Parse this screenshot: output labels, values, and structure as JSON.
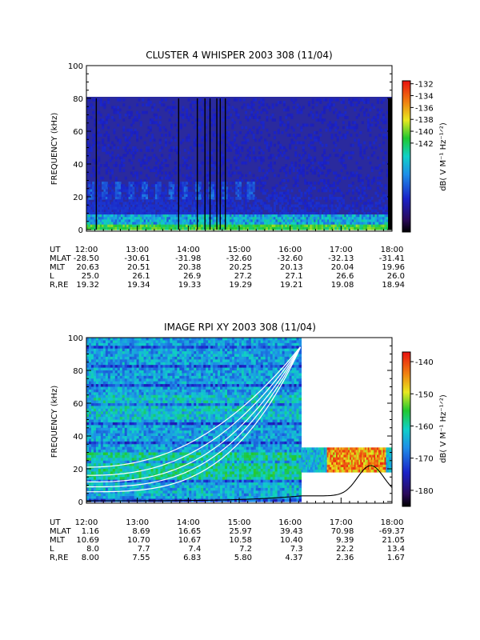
{
  "chart_data": [
    {
      "type": "heatmap",
      "title": "CLUSTER 4 WHISPER 2003 308 (11/04)",
      "ylabel": "FREQUENCY (kHz)",
      "ylim": [
        0,
        100
      ],
      "yticks": [
        0,
        20,
        40,
        60,
        80,
        100
      ],
      "x_range": [
        "12:00",
        "18:00"
      ],
      "data_frequency_max_khz": 80,
      "colorbar": {
        "label": "dB( V M⁻¹ Hz⁻¹ᐟ²)",
        "range": [
          -143.5,
          -131.5
        ],
        "ticks": [
          -132,
          -134,
          -136,
          -138,
          -140,
          -142
        ]
      },
      "vertical_gaps_ut": [
        "12:11",
        "13:48",
        "14:10",
        "14:19",
        "14:25",
        "14:33",
        "14:37",
        "14:43"
      ],
      "ephemeris": {
        "row_labels": [
          "UT",
          "MLAT",
          "MLT",
          "L",
          "R,RE"
        ],
        "UT": [
          "12:00",
          "13:00",
          "14:00",
          "15:00",
          "16:00",
          "17:00",
          "18:00"
        ],
        "MLAT": [
          "-28.50",
          "-30.61",
          "-31.98",
          "-32.60",
          "-32.60",
          "-32.13",
          "-31.41"
        ],
        "MLT": [
          "20.63",
          "20.51",
          "20.38",
          "20.25",
          "20.13",
          "20.04",
          "19.96"
        ],
        "L": [
          "25.0",
          "26.1",
          "26.9",
          "27.2",
          "27.1",
          "26.6",
          "26.0"
        ],
        "R,RE": [
          "19.32",
          "19.34",
          "19.33",
          "19.29",
          "19.21",
          "19.08",
          "18.94"
        ]
      }
    },
    {
      "type": "heatmap",
      "title": "IMAGE RPI XY 2003 308 (11/04)",
      "ylabel": "FREQUENCY (kHz)",
      "ylim": [
        0,
        100
      ],
      "yticks": [
        0,
        20,
        40,
        60,
        80,
        100
      ],
      "x_range": [
        "12:00",
        "18:00"
      ],
      "full_band_until_ut": "16:13",
      "narrow_band_khz": [
        18,
        33
      ],
      "colorbar": {
        "label": "dB( V M⁻¹ Hz⁻¹ᐟ²)",
        "range": [
          -185,
          -137
        ],
        "ticks": [
          -140,
          -150,
          -160,
          -170,
          -180
        ]
      },
      "overlay_curves": "white plasma-frequency curves; black plasma-frequency curve peaking near 17:35 at ~22 kHz",
      "ephemeris": {
        "row_labels": [
          "UT",
          "MLAT",
          "MLT",
          "L",
          "R,RE"
        ],
        "UT": [
          "12:00",
          "13:00",
          "14:00",
          "15:00",
          "16:00",
          "17:00",
          "18:00"
        ],
        "MLAT": [
          "1.16",
          "8.69",
          "16.65",
          "25.97",
          "39.43",
          "70.98",
          "-69.37"
        ],
        "MLT": [
          "10.69",
          "10.70",
          "10.67",
          "10.58",
          "10.40",
          "9.39",
          "21.05"
        ],
        "L": [
          "8.0",
          "7.7",
          "7.4",
          "7.2",
          "7.3",
          "22.2",
          "13.4"
        ],
        "R,RE": [
          "8.00",
          "7.55",
          "6.83",
          "5.80",
          "4.37",
          "2.36",
          "1.67"
        ]
      }
    }
  ]
}
